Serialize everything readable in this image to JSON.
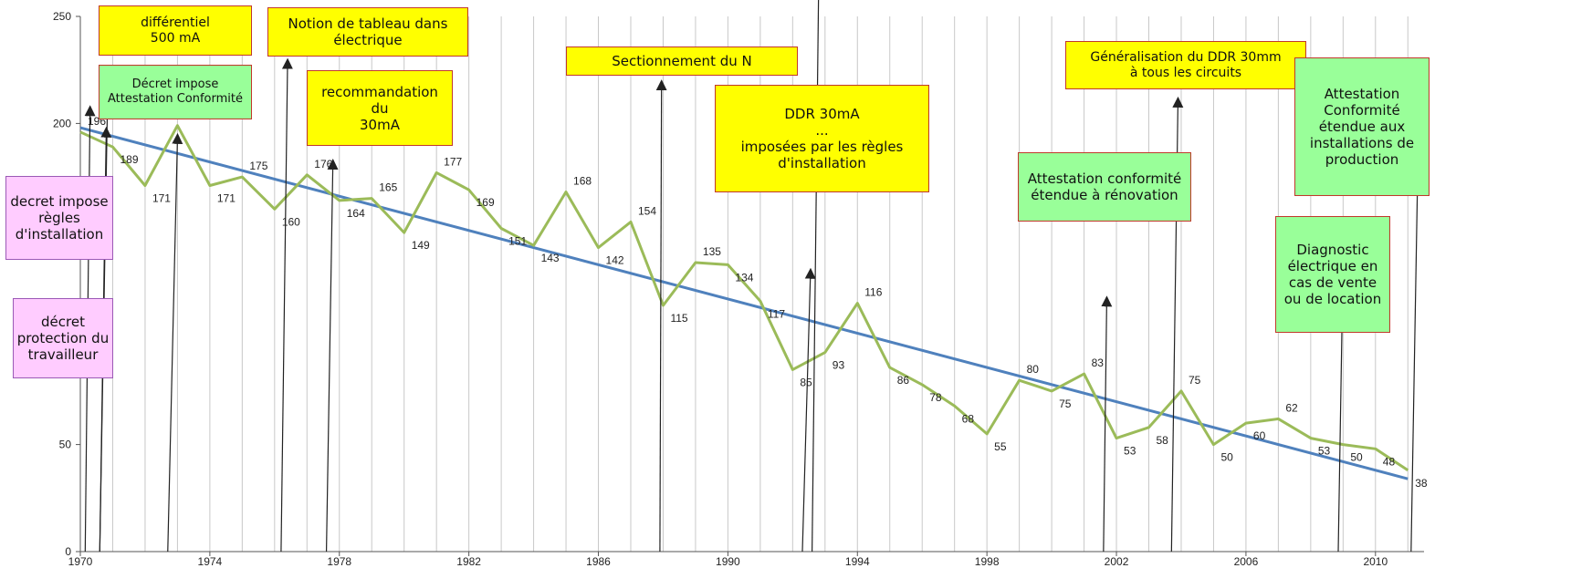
{
  "chart_data": {
    "type": "line",
    "x": [
      1970,
      1971,
      1972,
      1973,
      1974,
      1975,
      1976,
      1977,
      1978,
      1979,
      1980,
      1981,
      1982,
      1983,
      1984,
      1985,
      1986,
      1987,
      1988,
      1989,
      1990,
      1991,
      1992,
      1993,
      1994,
      1995,
      1996,
      1997,
      1998,
      1999,
      2000,
      2001,
      2002,
      2003,
      2004,
      2005,
      2006,
      2007,
      2008,
      2009,
      2010,
      2011
    ],
    "series": [
      {
        "values": [
          196,
          189,
          171,
          199,
          171,
          175,
          160,
          176,
          164,
          165,
          149,
          177,
          169,
          151,
          143,
          168,
          142,
          154,
          115,
          135,
          134,
          117,
          85,
          93,
          116,
          86,
          78,
          68,
          55,
          80,
          75,
          83,
          53,
          58,
          75,
          50,
          60,
          62,
          53,
          50,
          48,
          38
        ],
        "color": "#9bbb59"
      },
      {
        "type": "trend",
        "start": [
          1970,
          198
        ],
        "end": [
          2011,
          34
        ],
        "color": "#4f81bd"
      }
    ],
    "point_labels": [
      "196",
      "189",
      "171",
      "",
      "171",
      "175",
      "160",
      "176",
      "164",
      "165",
      "149",
      "177",
      "169",
      "151",
      "143",
      "168",
      "142",
      "154",
      "115",
      "135",
      "134",
      "117",
      "85",
      "93",
      "116",
      "86",
      "78",
      "68",
      "55",
      "80",
      "75",
      "83",
      "53",
      "58",
      "75",
      "50",
      "60",
      "62",
      "53",
      "50",
      "48",
      "38"
    ],
    "xlim": [
      1970,
      2011.5
    ],
    "ylim": [
      0,
      250
    ],
    "xticks": [
      1970,
      1974,
      1978,
      1982,
      1986,
      1990,
      1994,
      1998,
      2002,
      2006,
      2010
    ],
    "yticks": [
      0,
      50,
      100,
      150,
      200,
      250
    ],
    "ytick_labels": [
      "0",
      "50",
      "100",
      "150",
      "200",
      "250"
    ],
    "grid": "vertical yearly",
    "annotations": [
      {
        "text": "différentiel\n500 mA",
        "fill": "#ffff00"
      },
      {
        "text": "Notion de tableau dans\nélectrique",
        "fill": "#ffff00"
      },
      {
        "text": "Décret impose\nAttestation Conformité",
        "fill": "#99ff99"
      },
      {
        "text": "recommandation\ndu\n30mA",
        "fill": "#ffff00"
      },
      {
        "text": "Sectionnement du N",
        "fill": "#ffff00"
      },
      {
        "text": "DDR 30mA\n...\nimposées par les règles\nd'installation",
        "fill": "#ffff00"
      },
      {
        "text": "Généralisation du DDR 30mm\nà tous les circuits",
        "fill": "#ffff00"
      },
      {
        "text": "Attestation\nConformité\nétendue aux\ninstallations de\nproduction",
        "fill": "#99ff99"
      },
      {
        "text": "Attestation conformité\nétendue à rénovation",
        "fill": "#99ff99"
      },
      {
        "text": "Diagnostic\nélectrique en\ncas de vente\nou de location",
        "fill": "#99ff99"
      },
      {
        "text": "decret impose\nrègles\nd'installation",
        "fill": "#ffccff"
      },
      {
        "text": "décret\nprotection du\ntravailleur",
        "fill": "#ffccff"
      }
    ],
    "arrows": [
      {
        "from": [
          1970.6,
          0
        ],
        "to": [
          1970.8,
          196
        ]
      },
      {
        "from": [
          1970.15,
          0
        ],
        "to": [
          1970.3,
          206
        ]
      },
      {
        "from": [
          1970.6,
          0
        ],
        "to": [
          1970.85,
          220
        ]
      },
      {
        "from": [
          1972.7,
          0
        ],
        "to": [
          1973.0,
          193
        ]
      },
      {
        "from": [
          1976.2,
          0
        ],
        "to": [
          1976.4,
          228
        ]
      },
      {
        "from": [
          1977.6,
          0
        ],
        "to": [
          1977.8,
          181
        ]
      },
      {
        "from": [
          1987.9,
          0
        ],
        "to": [
          1987.95,
          218
        ]
      },
      {
        "from": [
          1992.6,
          0
        ],
        "to": [
          1992.8,
          261
        ]
      },
      {
        "from": [
          1992.3,
          0
        ],
        "to": [
          1992.55,
          130
        ]
      },
      {
        "from": [
          2001.6,
          0
        ],
        "to": [
          2001.7,
          117
        ]
      },
      {
        "from": [
          2003.7,
          0
        ],
        "to": [
          2003.9,
          210
        ]
      },
      {
        "from": [
          2008.85,
          0
        ],
        "to": [
          2009.0,
          137
        ]
      },
      {
        "from": [
          2011.1,
          0
        ],
        "to": [
          2011.3,
          174
        ]
      }
    ]
  }
}
